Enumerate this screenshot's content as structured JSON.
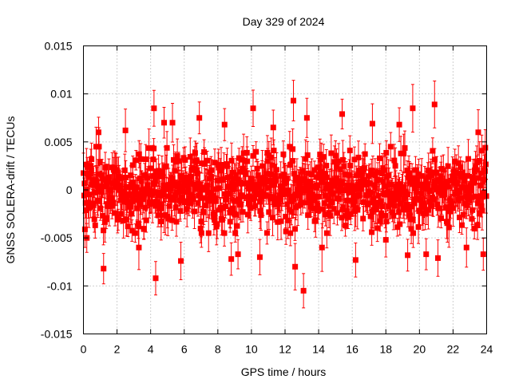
{
  "chart_data": {
    "type": "scatter",
    "title": "Day 329 of 2024",
    "xlabel": "GPS time / hours",
    "ylabel": "GNSS SOLERA-drift / TECUs",
    "xlim": [
      0,
      24
    ],
    "ylim": [
      -0.015,
      0.015
    ],
    "x_ticks": [
      "0",
      "2",
      "4",
      "6",
      "8",
      "10",
      "12",
      "14",
      "16",
      "18",
      "20",
      "22",
      "24"
    ],
    "y_ticks": [
      "0.015",
      "0.01",
      "0.005",
      "0",
      "-0.005",
      "-0.01",
      "-0.015"
    ],
    "grid": true,
    "marker": "square",
    "error_bars": true,
    "series_color": "#ff0000",
    "noise_band": [
      -0.0045,
      0.0045
    ],
    "outliers": [
      {
        "x": 0.2,
        "y": -0.005
      },
      {
        "x": 0.9,
        "y": 0.006
      },
      {
        "x": 1.2,
        "y": -0.0082
      },
      {
        "x": 2.5,
        "y": 0.0062
      },
      {
        "x": 3.3,
        "y": -0.006
      },
      {
        "x": 4.2,
        "y": 0.0085
      },
      {
        "x": 4.3,
        "y": -0.0092
      },
      {
        "x": 4.8,
        "y": 0.007
      },
      {
        "x": 5.3,
        "y": 0.007
      },
      {
        "x": 5.8,
        "y": -0.0074
      },
      {
        "x": 6.9,
        "y": 0.0075
      },
      {
        "x": 8.4,
        "y": 0.0068
      },
      {
        "x": 8.8,
        "y": -0.0072
      },
      {
        "x": 9.2,
        "y": -0.0067
      },
      {
        "x": 10.1,
        "y": 0.0085
      },
      {
        "x": 10.5,
        "y": -0.007
      },
      {
        "x": 11.3,
        "y": 0.0065
      },
      {
        "x": 12.5,
        "y": 0.0093
      },
      {
        "x": 12.6,
        "y": -0.008
      },
      {
        "x": 13.1,
        "y": -0.0105
      },
      {
        "x": 13.3,
        "y": 0.0075
      },
      {
        "x": 14.2,
        "y": -0.006
      },
      {
        "x": 15.4,
        "y": 0.0079
      },
      {
        "x": 16.2,
        "y": -0.0073
      },
      {
        "x": 17.2,
        "y": 0.0069
      },
      {
        "x": 18.0,
        "y": -0.0052
      },
      {
        "x": 18.8,
        "y": 0.0068
      },
      {
        "x": 19.3,
        "y": -0.0068
      },
      {
        "x": 19.6,
        "y": 0.0085
      },
      {
        "x": 20.4,
        "y": -0.0067
      },
      {
        "x": 20.9,
        "y": 0.0089
      },
      {
        "x": 21.1,
        "y": -0.0071
      },
      {
        "x": 22.8,
        "y": -0.006
      },
      {
        "x": 23.5,
        "y": 0.006
      },
      {
        "x": 23.8,
        "y": -0.0067
      }
    ]
  }
}
